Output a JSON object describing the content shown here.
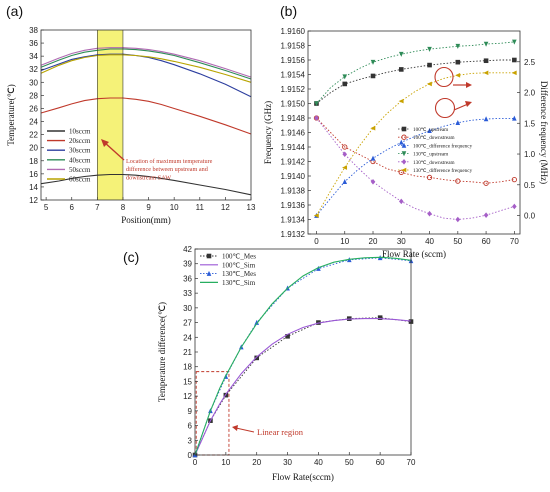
{
  "panels": {
    "a": "(a)",
    "b": "(b)",
    "c": "(c)"
  },
  "chart_data": [
    {
      "type": "line",
      "panel": "(a)",
      "xlabel": "Position(mm)",
      "ylabel": "Temperature(℃)",
      "xlim": [
        4.8,
        13
      ],
      "ylim": [
        12,
        38
      ],
      "xticks": [
        "5",
        "6",
        "7",
        "8",
        "9",
        "10",
        "11",
        "12",
        "13"
      ],
      "yticks": [
        "12",
        "14",
        "16",
        "18",
        "20",
        "22",
        "24",
        "26",
        "28",
        "30",
        "32",
        "34",
        "36",
        "38"
      ],
      "highlight": {
        "from": 7,
        "to": 8,
        "color": "#f3f060"
      },
      "annotation": "Location of maximum temperature difference between upstream and downstream SAW",
      "annotation_lines": [
        "Location of maximum temperature",
        "difference between upstream and",
        "downstream SAW"
      ],
      "x": [
        4.8,
        5.5,
        6,
        6.5,
        7,
        7.5,
        8,
        8.5,
        9,
        9.5,
        10,
        11,
        12,
        13
      ],
      "series": [
        {
          "name": "10sccm",
          "color": "#333333",
          "values": [
            14.5,
            14.9,
            15.3,
            15.6,
            15.8,
            15.9,
            15.9,
            15.8,
            15.6,
            15.3,
            15.0,
            14.3,
            13.6,
            12.8
          ]
        },
        {
          "name": "20sccm",
          "color": "#c0392b",
          "values": [
            25.3,
            26.1,
            26.7,
            27.2,
            27.5,
            27.6,
            27.6,
            27.4,
            27.1,
            26.6,
            26.0,
            24.8,
            23.5,
            22.1
          ]
        },
        {
          "name": "30sccm",
          "color": "#2c3e9f",
          "values": [
            31.8,
            32.8,
            33.5,
            33.9,
            34.2,
            34.3,
            34.3,
            34.1,
            33.8,
            33.3,
            32.7,
            31.3,
            29.7,
            27.8
          ]
        },
        {
          "name": "40sccm",
          "color": "#2e8b57",
          "values": [
            32.3,
            33.4,
            34.1,
            34.6,
            34.9,
            35.1,
            35.1,
            35.0,
            34.8,
            34.5,
            34.1,
            33.0,
            31.8,
            30.5
          ]
        },
        {
          "name": "50sccm",
          "color": "#b06ab3",
          "values": [
            32.6,
            33.7,
            34.4,
            34.9,
            35.2,
            35.3,
            35.3,
            35.2,
            35.0,
            34.7,
            34.3,
            33.3,
            32.1,
            30.8
          ]
        },
        {
          "name": "60sccm",
          "color": "#b8a400",
          "values": [
            31.4,
            32.6,
            33.3,
            33.8,
            34.1,
            34.2,
            34.2,
            34.1,
            33.9,
            33.6,
            33.2,
            32.3,
            31.2,
            30.0
          ]
        }
      ]
    },
    {
      "type": "line",
      "panel": "(b)",
      "xlabel": "Flow Rate (sccm)",
      "ylabel": "Frequency (GHz)",
      "ylabel_right": "Difference frequency (MHz)",
      "xlim": [
        -3,
        72
      ],
      "ylim": [
        1.9132,
        1.916
      ],
      "ylim_right": [
        -0.3,
        3.0
      ],
      "xticks": [
        "0",
        "10",
        "20",
        "30",
        "40",
        "50",
        "60",
        "70"
      ],
      "yticks": [
        "1.9132",
        "1.9134",
        "1.9136",
        "1.9138",
        "1.9140",
        "1.9142",
        "1.9144",
        "1.9146",
        "1.9148",
        "1.9150",
        "1.9152",
        "1.9154",
        "1.9156",
        "1.9158",
        "1.9160"
      ],
      "yticks_right": [
        "0.0",
        "0.5",
        "1.0",
        "1.5",
        "2.0",
        "2.5"
      ],
      "x": [
        0,
        5,
        10,
        15,
        20,
        25,
        30,
        35,
        40,
        45,
        50,
        55,
        60,
        65,
        70
      ],
      "series": [
        {
          "name": "100℃_upstream",
          "axis": "left",
          "color": "#333333",
          "marker": "square",
          "values": [
            1.915,
            1.91515,
            1.91527,
            1.91533,
            1.91538,
            1.91543,
            1.91547,
            1.9155,
            1.91553,
            1.91555,
            1.91557,
            1.91558,
            1.91559,
            1.9156,
            1.9156
          ]
        },
        {
          "name": "100℃_downstream",
          "axis": "left",
          "color": "#c0392b",
          "marker": "circle",
          "values": [
            1.9148,
            1.9146,
            1.9144,
            1.9143,
            1.9142,
            1.9141,
            1.91405,
            1.914,
            1.91398,
            1.91395,
            1.91393,
            1.91392,
            1.9139,
            1.91392,
            1.91395
          ]
        },
        {
          "name": "100℃_difference frequency",
          "axis": "right",
          "color": "#2a5bd7",
          "marker": "triangle-up",
          "values": [
            0.0,
            0.28,
            0.55,
            0.76,
            0.93,
            1.07,
            1.19,
            1.29,
            1.38,
            1.45,
            1.51,
            1.55,
            1.57,
            1.58,
            1.58
          ]
        },
        {
          "name": "130℃_upstream",
          "axis": "left",
          "color": "#2e8b57",
          "marker": "triangle-down",
          "values": [
            1.915,
            1.91522,
            1.91537,
            1.91548,
            1.91557,
            1.91563,
            1.91568,
            1.91572,
            1.91575,
            1.91577,
            1.91579,
            1.9158,
            1.91582,
            1.91583,
            1.91585
          ]
        },
        {
          "name": "130℃_downstream",
          "axis": "left",
          "color": "#a55ec7",
          "marker": "diamond",
          "values": [
            1.9148,
            1.91455,
            1.9143,
            1.9141,
            1.91392,
            1.91378,
            1.91365,
            1.91355,
            1.91348,
            1.91342,
            1.9134,
            1.91342,
            1.91346,
            1.91352,
            1.91358
          ]
        },
        {
          "name": "130℃_difference frequency",
          "axis": "right",
          "color": "#c9a200",
          "marker": "triangle-left",
          "values": [
            0.0,
            0.4,
            0.78,
            1.12,
            1.42,
            1.66,
            1.86,
            2.02,
            2.14,
            2.23,
            2.28,
            2.31,
            2.32,
            2.32,
            2.32
          ]
        }
      ]
    },
    {
      "type": "line",
      "panel": "(c)",
      "xlabel": "Flow Rate(sccm)",
      "ylabel": "Temperature difference(℃)",
      "xlim": [
        0,
        70
      ],
      "ylim": [
        0,
        42
      ],
      "xticks": [
        "0",
        "10",
        "20",
        "30",
        "40",
        "50",
        "60",
        "70"
      ],
      "yticks": [
        "0",
        "3",
        "6",
        "9",
        "12",
        "15",
        "18",
        "21",
        "24",
        "27",
        "30",
        "33",
        "36",
        "39",
        "42"
      ],
      "annotation": "Linear region",
      "series": [
        {
          "name": "100℃_Mes",
          "color": "#333333",
          "marker": "square",
          "dashed": true,
          "x": [
            0,
            5,
            10,
            20,
            30,
            40,
            50,
            60,
            70
          ],
          "values": [
            0,
            7.0,
            12.2,
            19.8,
            24.2,
            27.0,
            27.8,
            28.0,
            27.2
          ]
        },
        {
          "name": "100℃_Sim",
          "color": "#9b59d6",
          "marker": "none",
          "dashed": false,
          "x": [
            0,
            2,
            5,
            8,
            10,
            15,
            20,
            25,
            30,
            35,
            40,
            45,
            50,
            55,
            60,
            65,
            70
          ],
          "values": [
            0,
            2.8,
            7.0,
            10.4,
            12.4,
            16.6,
            20.0,
            22.6,
            24.6,
            26.0,
            26.9,
            27.4,
            27.7,
            27.8,
            27.8,
            27.6,
            27.3
          ]
        },
        {
          "name": "130℃_Mes",
          "color": "#2a5bd7",
          "marker": "triangle-up",
          "dashed": true,
          "x": [
            0,
            5,
            10,
            15,
            20,
            30,
            40,
            50,
            60,
            70
          ],
          "values": [
            0,
            9.0,
            16.0,
            22.0,
            27.0,
            34.0,
            38.0,
            39.8,
            40.2,
            39.6
          ]
        },
        {
          "name": "130℃_Sim",
          "color": "#27ae60",
          "marker": "none",
          "dashed": false,
          "x": [
            0,
            2,
            5,
            8,
            10,
            15,
            20,
            25,
            30,
            35,
            40,
            45,
            50,
            55,
            60,
            65,
            70
          ],
          "values": [
            0,
            3.6,
            9.0,
            13.6,
            16.2,
            22.0,
            26.8,
            30.8,
            34.0,
            36.5,
            38.2,
            39.3,
            39.9,
            40.2,
            40.3,
            40.1,
            39.7
          ]
        }
      ]
    }
  ]
}
